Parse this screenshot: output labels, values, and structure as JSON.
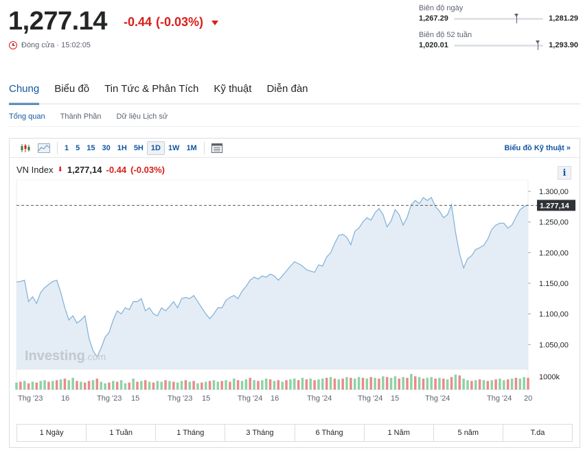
{
  "quote": {
    "price": "1,277.14",
    "change": "-0.44",
    "change_pct": "(-0.03%)",
    "closed_label": "Đóng cửa · 15:02:05",
    "down_color": "#d91e18"
  },
  "ranges": {
    "day": {
      "label": "Biên độ ngày",
      "low": "1,267.29",
      "high": "1,281.29",
      "position": 0.7
    },
    "week52": {
      "label": "Biên độ 52 tuần",
      "low": "1,020.01",
      "high": "1,293.90",
      "position": 0.94
    }
  },
  "main_tabs": [
    "Chung",
    "Biểu đồ",
    "Tin Tức & Phân Tích",
    "Kỹ thuật",
    "Diễn đàn"
  ],
  "sub_tabs": [
    "Tổng quan",
    "Thành Phần",
    "Dữ liệu Lịch sử"
  ],
  "toolbar": {
    "intervals": [
      "1",
      "5",
      "15",
      "30",
      "1H",
      "5H",
      "1D",
      "1W",
      "1M"
    ],
    "active_interval": "1D",
    "tech_chart_link": "Biểu đồ Kỹ thuật »"
  },
  "legend": {
    "name": "VN Index",
    "value": "1,277,14",
    "change": "-0.44",
    "change_pct": "(-0.03%)"
  },
  "info_label": "i",
  "watermark": {
    "brand": "Investing",
    "suffix": ".com"
  },
  "periods": [
    "1 Ngày",
    "1 Tuần",
    "1 Tháng",
    "3 Tháng",
    "6 Tháng",
    "1 Năm",
    "5 năm",
    "T.da"
  ],
  "accent_color": "#1256a0",
  "chart_data": {
    "type": "area",
    "y_ticks": [
      "1.300,00",
      "1.250,00",
      "1.200,00",
      "1.150,00",
      "1.100,00",
      "1.050,00"
    ],
    "ylim": [
      1010,
      1310
    ],
    "last_value_label": "1.277,14",
    "last_value": 1277.14,
    "volume_label": "1000k",
    "x_tick_labels": [
      "Thg '23",
      "16",
      "Thg '23",
      "15",
      "Thg '23",
      "15",
      "Thg '24",
      "16",
      "Thg '24",
      "Thg '24",
      "15",
      "Thg '24",
      "Thg '24",
      "20"
    ],
    "values": [
      1152,
      1153,
      1155,
      1120,
      1128,
      1117,
      1135,
      1143,
      1148,
      1153,
      1155,
      1135,
      1110,
      1090,
      1097,
      1085,
      1090,
      1097,
      1060,
      1040,
      1030,
      1044,
      1062,
      1070,
      1090,
      1105,
      1100,
      1110,
      1107,
      1120,
      1120,
      1125,
      1105,
      1110,
      1100,
      1097,
      1110,
      1105,
      1112,
      1120,
      1110,
      1125,
      1127,
      1125,
      1130,
      1120,
      1110,
      1100,
      1092,
      1100,
      1110,
      1110,
      1122,
      1127,
      1130,
      1125,
      1137,
      1145,
      1155,
      1160,
      1157,
      1162,
      1160,
      1165,
      1162,
      1155,
      1162,
      1170,
      1178,
      1185,
      1182,
      1178,
      1172,
      1170,
      1168,
      1180,
      1178,
      1193,
      1200,
      1215,
      1228,
      1230,
      1225,
      1213,
      1235,
      1240,
      1250,
      1257,
      1253,
      1265,
      1272,
      1262,
      1242,
      1252,
      1270,
      1262,
      1245,
      1258,
      1278,
      1285,
      1280,
      1290,
      1285,
      1290,
      1275,
      1268,
      1257,
      1262,
      1278,
      1233,
      1198,
      1175,
      1190,
      1195,
      1205,
      1208,
      1212,
      1222,
      1238,
      1245,
      1248,
      1248,
      1240,
      1245,
      1258,
      1270,
      1275,
      1278
    ],
    "volumes": [
      0.45,
      0.5,
      0.55,
      0.4,
      0.5,
      0.45,
      0.55,
      0.6,
      0.5,
      0.55,
      0.6,
      0.65,
      0.7,
      0.6,
      0.75,
      0.55,
      0.5,
      0.45,
      0.55,
      0.6,
      0.7,
      0.5,
      0.4,
      0.45,
      0.55,
      0.5,
      0.6,
      0.4,
      0.45,
      0.7,
      0.5,
      0.55,
      0.6,
      0.5,
      0.45,
      0.55,
      0.5,
      0.6,
      0.55,
      0.5,
      0.45,
      0.55,
      0.6,
      0.5,
      0.55,
      0.4,
      0.45,
      0.5,
      0.55,
      0.6,
      0.5,
      0.55,
      0.6,
      0.5,
      0.7,
      0.6,
      0.55,
      0.65,
      0.75,
      0.6,
      0.55,
      0.6,
      0.7,
      0.65,
      0.55,
      0.6,
      0.5,
      0.6,
      0.65,
      0.7,
      0.6,
      0.75,
      0.65,
      0.7,
      0.6,
      0.65,
      0.7,
      0.75,
      0.8,
      0.7,
      0.65,
      0.7,
      0.8,
      0.75,
      0.7,
      0.8,
      0.75,
      0.7,
      0.8,
      0.75,
      0.7,
      0.85,
      0.8,
      0.75,
      0.85,
      0.7,
      0.8,
      0.75,
      1.0,
      0.85,
      0.8,
      0.7,
      0.75,
      0.8,
      0.7,
      0.75,
      0.7,
      0.65,
      0.8,
      0.95,
      0.9,
      0.7,
      0.6,
      0.55,
      0.6,
      0.65,
      0.6,
      0.55,
      0.6,
      0.65,
      0.7,
      0.6,
      0.65,
      0.7,
      0.75,
      0.7,
      0.8,
      0.75
    ],
    "volume_down_flags": [
      0,
      1,
      0,
      1,
      0,
      1,
      0,
      0,
      1,
      0,
      1,
      0,
      1,
      0,
      0,
      1,
      0,
      1,
      1,
      0,
      1,
      0,
      0,
      1,
      0,
      1,
      0,
      0,
      1,
      0,
      1,
      0,
      1,
      0,
      1,
      0,
      0,
      1,
      0,
      1,
      0,
      0,
      1,
      0,
      1,
      0,
      1,
      0,
      1,
      0,
      0,
      1,
      0,
      1,
      0,
      1,
      0,
      0,
      1,
      0,
      1,
      0,
      0,
      1,
      0,
      1,
      0,
      1,
      0,
      0,
      1,
      0,
      1,
      0,
      1,
      0,
      0,
      1,
      0,
      1,
      0,
      1,
      0,
      1,
      0,
      0,
      1,
      0,
      1,
      0,
      1,
      0,
      1,
      0,
      0,
      1,
      0,
      1,
      0,
      1,
      0,
      1,
      0,
      0,
      1,
      0,
      1,
      0,
      1,
      0,
      1,
      0,
      0,
      1,
      0,
      1,
      0,
      1,
      0,
      1,
      0,
      0,
      1,
      0,
      1,
      0,
      0,
      1
    ],
    "line_color": "#86b4da",
    "fill_color": "#e4edf5",
    "vol_up_color": "#8fd1a6",
    "vol_down_color": "#e98a8a",
    "grid": false
  }
}
